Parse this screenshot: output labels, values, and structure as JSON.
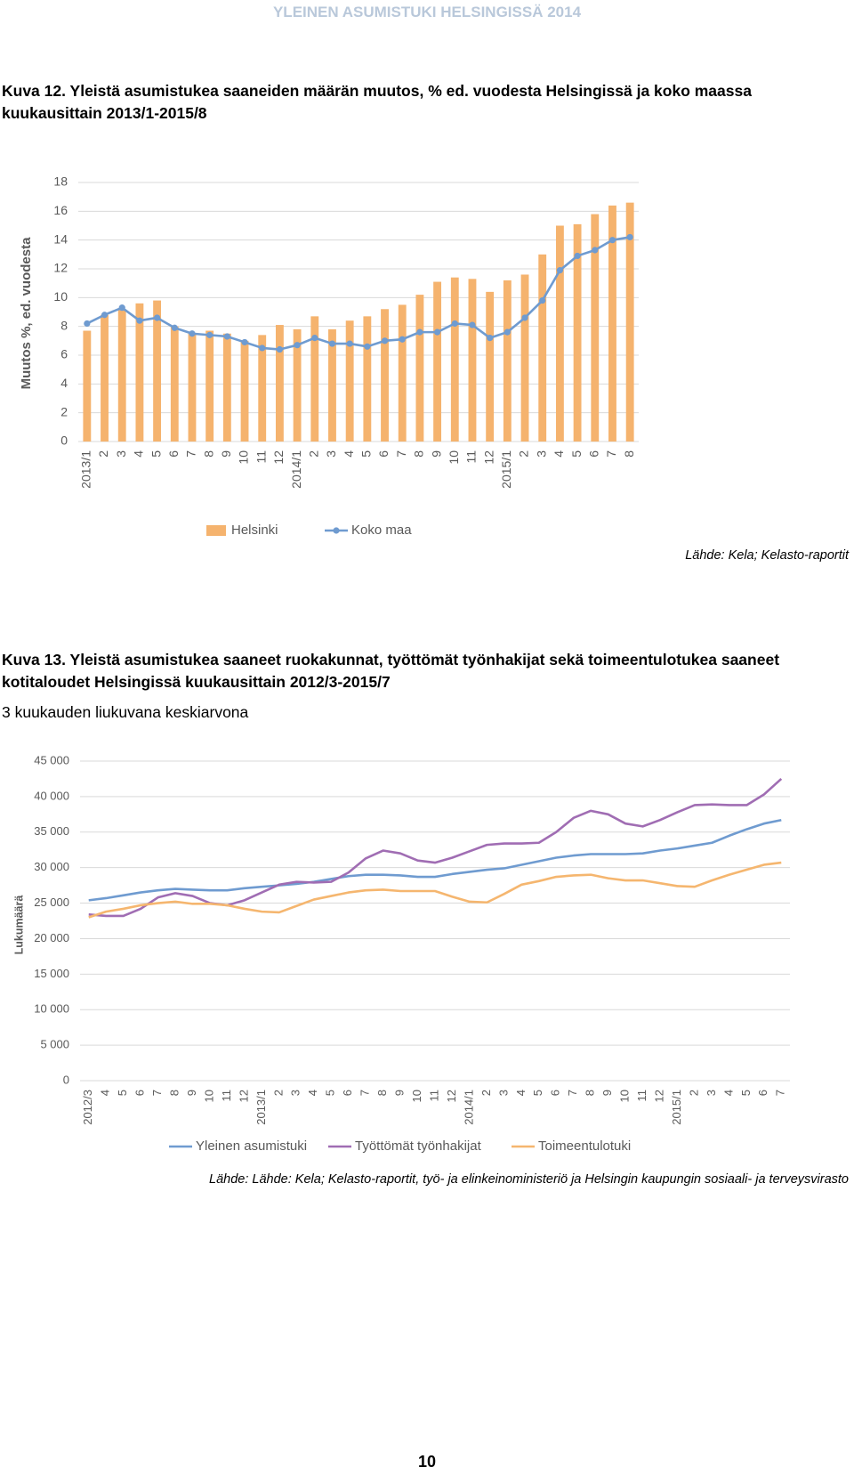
{
  "header": "YLEINEN ASUMISTUKI HELSINGISSÄ 2014",
  "chart_data": [
    {
      "type": "combo",
      "title": "Kuva 12. Yleistä asumistukea saaneiden määrän muutos, % ed. vuodesta Helsingissä ja koko maassa kuukausittain 2013/1-2015/8",
      "y_label": "Muutos %, ed. vuodesta",
      "categories": [
        "2013/1",
        "2",
        "3",
        "4",
        "5",
        "6",
        "7",
        "8",
        "9",
        "10",
        "11",
        "12",
        "2014/1",
        "2",
        "3",
        "4",
        "5",
        "6",
        "7",
        "8",
        "9",
        "10",
        "11",
        "12",
        "2015/1",
        "2",
        "3",
        "4",
        "5",
        "6",
        "7",
        "8"
      ],
      "series": [
        {
          "name": "Helsinki",
          "type": "bar",
          "color": "#f5b36e",
          "values": [
            7.7,
            8.8,
            9.2,
            9.6,
            9.8,
            8.0,
            7.5,
            7.7,
            7.5,
            7.0,
            7.4,
            8.1,
            7.8,
            8.7,
            7.8,
            8.4,
            8.7,
            9.2,
            9.5,
            10.2,
            11.1,
            11.4,
            11.3,
            10.4,
            11.2,
            11.6,
            13.0,
            15.0,
            15.1,
            15.8,
            16.4,
            16.6
          ]
        },
        {
          "name": "Koko maa",
          "type": "line",
          "marker": true,
          "color": "#6f9bd0",
          "values": [
            8.2,
            8.8,
            9.3,
            8.4,
            8.6,
            7.9,
            7.5,
            7.4,
            7.3,
            6.9,
            6.5,
            6.4,
            6.7,
            7.2,
            6.8,
            6.8,
            6.6,
            7.0,
            7.1,
            7.6,
            7.6,
            8.2,
            8.1,
            7.2,
            7.6,
            8.6,
            9.8,
            11.9,
            12.9,
            13.3,
            14.0,
            14.2
          ]
        }
      ],
      "ylim": [
        0,
        18
      ],
      "yticks": [
        0,
        2,
        4,
        6,
        8,
        10,
        12,
        14,
        16,
        18
      ],
      "grid": true,
      "source": "Lähde: Kela; Kelasto-raportit"
    },
    {
      "type": "line",
      "title": "Kuva 13. Yleistä asumistukea saaneet ruokakunnat, työttömät työnhakijat sekä toimeentulotukea saaneet kotitaloudet Helsingissä kuukausittain 2012/3-2015/7",
      "subtitle": "3 kuukauden liukuvana keskiarvona",
      "y_label": "Lukumäärä",
      "categories": [
        "2012/3",
        "4",
        "5",
        "6",
        "7",
        "8",
        "9",
        "10",
        "11",
        "12",
        "2013/1",
        "2",
        "3",
        "4",
        "5",
        "6",
        "7",
        "8",
        "9",
        "10",
        "11",
        "12",
        "2014/1",
        "2",
        "3",
        "4",
        "5",
        "6",
        "7",
        "8",
        "9",
        "10",
        "11",
        "12",
        "2015/1",
        "2",
        "3",
        "4",
        "5",
        "6",
        "7"
      ],
      "series": [
        {
          "name": "Yleinen asumistuki",
          "color": "#6f9bd0",
          "values": [
            25400,
            25700,
            26100,
            26500,
            26800,
            27000,
            26900,
            26800,
            26800,
            27100,
            27300,
            27500,
            27700,
            28000,
            28400,
            28800,
            29000,
            29000,
            28900,
            28700,
            28700,
            29100,
            29400,
            29700,
            29900,
            30400,
            30900,
            31400,
            31700,
            31900,
            31900,
            31900,
            32000,
            32400,
            32700,
            33100,
            33500,
            34500,
            35400,
            36200,
            36700
          ]
        },
        {
          "name": "Työttömät työnhakijat",
          "color": "#a06db3",
          "values": [
            23400,
            23200,
            23200,
            24200,
            25800,
            26400,
            26000,
            25000,
            24700,
            25400,
            26500,
            27600,
            28000,
            27900,
            28000,
            29300,
            31300,
            32400,
            32000,
            31000,
            30700,
            31400,
            32300,
            33200,
            33400,
            33400,
            33500,
            35000,
            37000,
            38000,
            37500,
            36200,
            35800,
            36700,
            37800,
            38800,
            38900,
            38800,
            38800,
            40300,
            42500
          ]
        },
        {
          "name": "Toimeentulotuki",
          "color": "#f5b66f",
          "values": [
            23000,
            23800,
            24200,
            24700,
            25000,
            25200,
            24900,
            24900,
            24700,
            24200,
            23800,
            23700,
            24600,
            25500,
            26000,
            26500,
            26800,
            26900,
            26700,
            26700,
            26700,
            25900,
            25200,
            25100,
            26300,
            27600,
            28100,
            28700,
            28900,
            29000,
            28500,
            28200,
            28200,
            27800,
            27400,
            27300,
            28200,
            29000,
            29700,
            30400,
            30700
          ]
        }
      ],
      "ylim": [
        0,
        45000
      ],
      "yticks": [
        0,
        {
          "value": 5000,
          "label": "5 000"
        },
        {
          "value": 10000,
          "label": "10 000"
        },
        {
          "value": 15000,
          "label": "15 000"
        },
        {
          "value": 20000,
          "label": "20 000"
        },
        {
          "value": 25000,
          "label": "25 000"
        },
        {
          "value": 30000,
          "label": "30 000"
        },
        {
          "value": 35000,
          "label": "35 000"
        },
        {
          "value": 40000,
          "label": "40 000"
        },
        {
          "value": 45000,
          "label": "45 000"
        }
      ],
      "grid": true,
      "source": "Lähde: Lähde: Kela; Kelasto-raportit, työ- ja elinkeinoministeriö ja Helsingin kaupungin sosiaali- ja terveysvirasto"
    }
  ],
  "page_number": "10"
}
